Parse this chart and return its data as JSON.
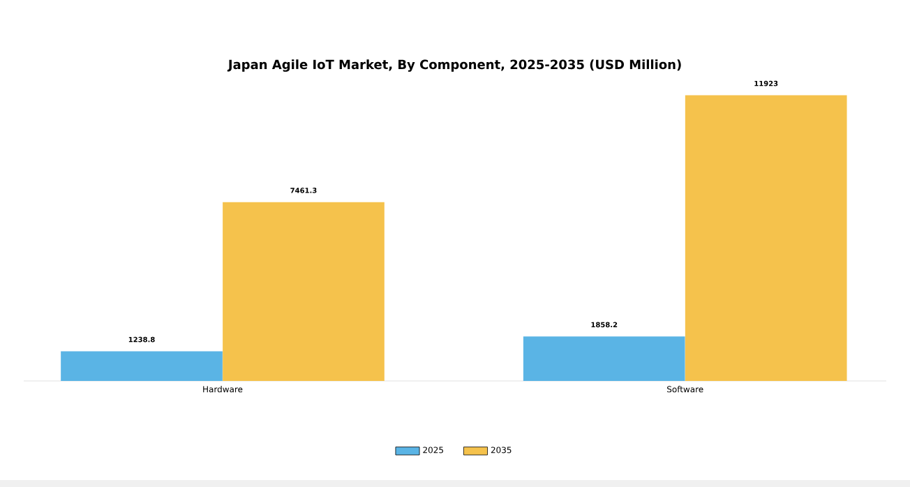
{
  "chart_data": {
    "type": "bar",
    "title": "Japan Agile IoT Market, By Component, 2025-2035 (USD Million)",
    "categories": [
      "Hardware",
      "Software"
    ],
    "series": [
      {
        "name": "2025",
        "color": "#5ab4e5",
        "values": [
          1238.8,
          1858.2
        ]
      },
      {
        "name": "2035",
        "color": "#f5c24c",
        "values": [
          7461.3,
          11923
        ]
      }
    ],
    "data_labels": true,
    "legend": "bottom"
  }
}
